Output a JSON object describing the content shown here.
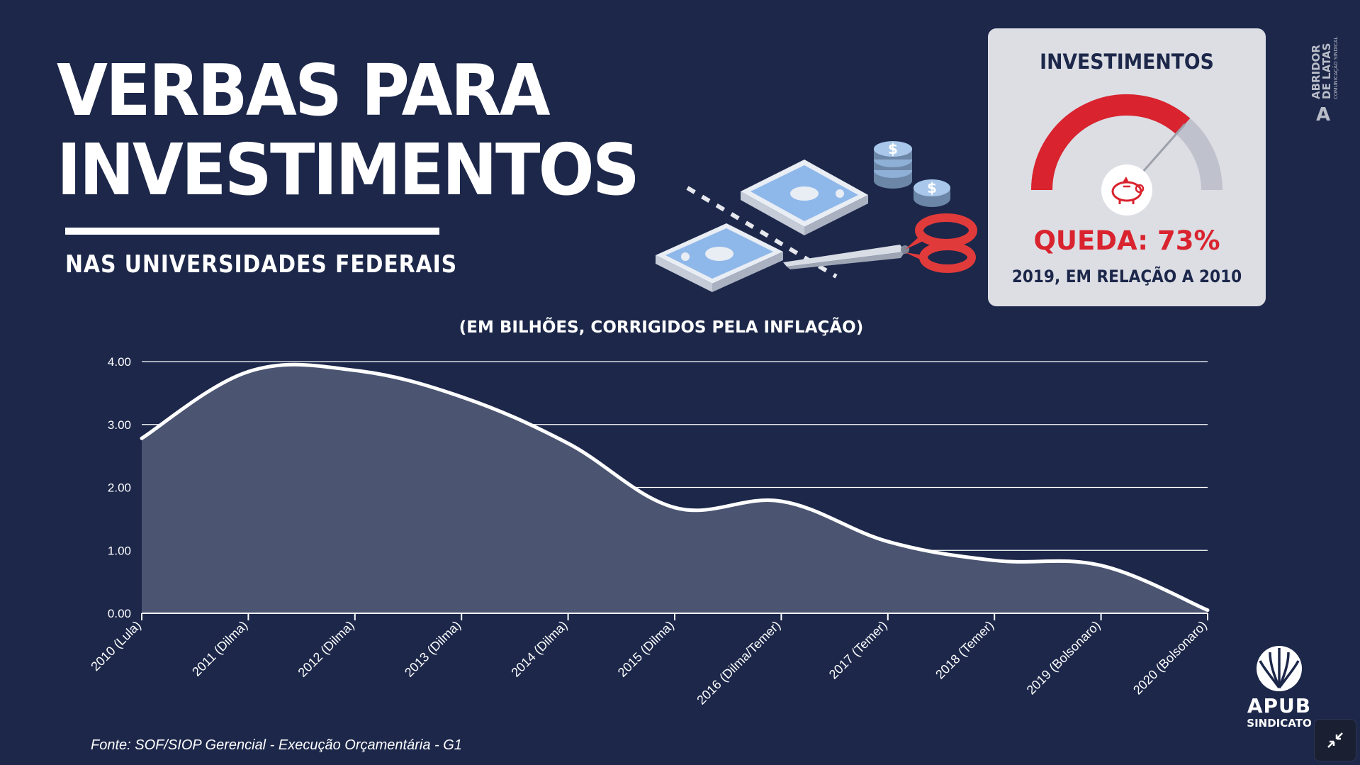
{
  "header": {
    "title_line1": "VERBAS PARA",
    "title_line2": "INVESTIMENTOS",
    "subtitle": "NAS UNIVERSIDADES FEDERAIS"
  },
  "gauge": {
    "title": "INVESTIMENTOS",
    "value_label": "QUEDA: 73%",
    "caption": "2019, EM RELAÇÃO A 2010",
    "fill_fraction": 0.73,
    "icon": "piggy-bank-icon"
  },
  "agency": {
    "name_line1": "ABRIDOR",
    "name_line2": "DE LATAS",
    "tagline": "COMUNICAÇÃO SINDICAL"
  },
  "chart_data": {
    "type": "area",
    "title": "(EM BILHÕES, CORRIGIDOS PELA INFLAÇÃO)",
    "categories": [
      "2010 (Lula)",
      "2011 (Dilma)",
      "2012 (Dilma)",
      "2013 (Dilma)",
      "2014 (Dilma)",
      "2015 (Dilma)",
      "2016 (Dilma/Temer)",
      "2017 (Temer)",
      "2018 (Temer)",
      "2019 (Bolsonaro)",
      "2020 (Bolsonaro)"
    ],
    "values": [
      2.78,
      3.84,
      3.86,
      3.44,
      2.7,
      1.68,
      1.78,
      1.14,
      0.84,
      0.76,
      0.05
    ],
    "ylim": [
      0,
      4
    ],
    "yticks": [
      "0.00",
      "1.00",
      "2.00",
      "3.00",
      "4.00"
    ],
    "grid": true,
    "legend": "none"
  },
  "source": "Fonte: SOF/SIOP Gerencial - Execução Orçamentária - G1",
  "logo": {
    "name": "APUB",
    "sub": "SINDICATO"
  },
  "colors": {
    "background": "#1c274a",
    "area_fill": "#4b5572",
    "line": "#ffffff",
    "accent_red": "#d9232e",
    "card": "#dcdee4"
  }
}
